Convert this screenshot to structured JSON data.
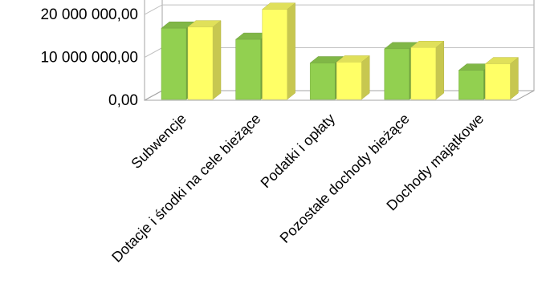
{
  "chart_data": {
    "type": "bar",
    "style": "3d-clustered",
    "categories": [
      "Subwencje",
      "Dotacje i środki na cele bieżące",
      "Podatki i opłaty",
      "Pozostałe dochody bieżące",
      "Dochody majątkowe"
    ],
    "series": [
      {
        "color": "#92d050",
        "values": [
          16800000,
          14200000,
          8700000,
          12000000,
          7000000
        ]
      },
      {
        "color": "#ffff66",
        "values": [
          17100000,
          21200000,
          8900000,
          12300000,
          8500000
        ]
      }
    ],
    "yticks": [
      0,
      10000000,
      20000000
    ],
    "ytick_labels": [
      "0,00",
      "10 000 000,00",
      "20 000 000,00"
    ],
    "ylim": [
      0,
      26000000
    ],
    "grid": true,
    "legend": false,
    "title": "",
    "xlabel": "",
    "ylabel": ""
  }
}
